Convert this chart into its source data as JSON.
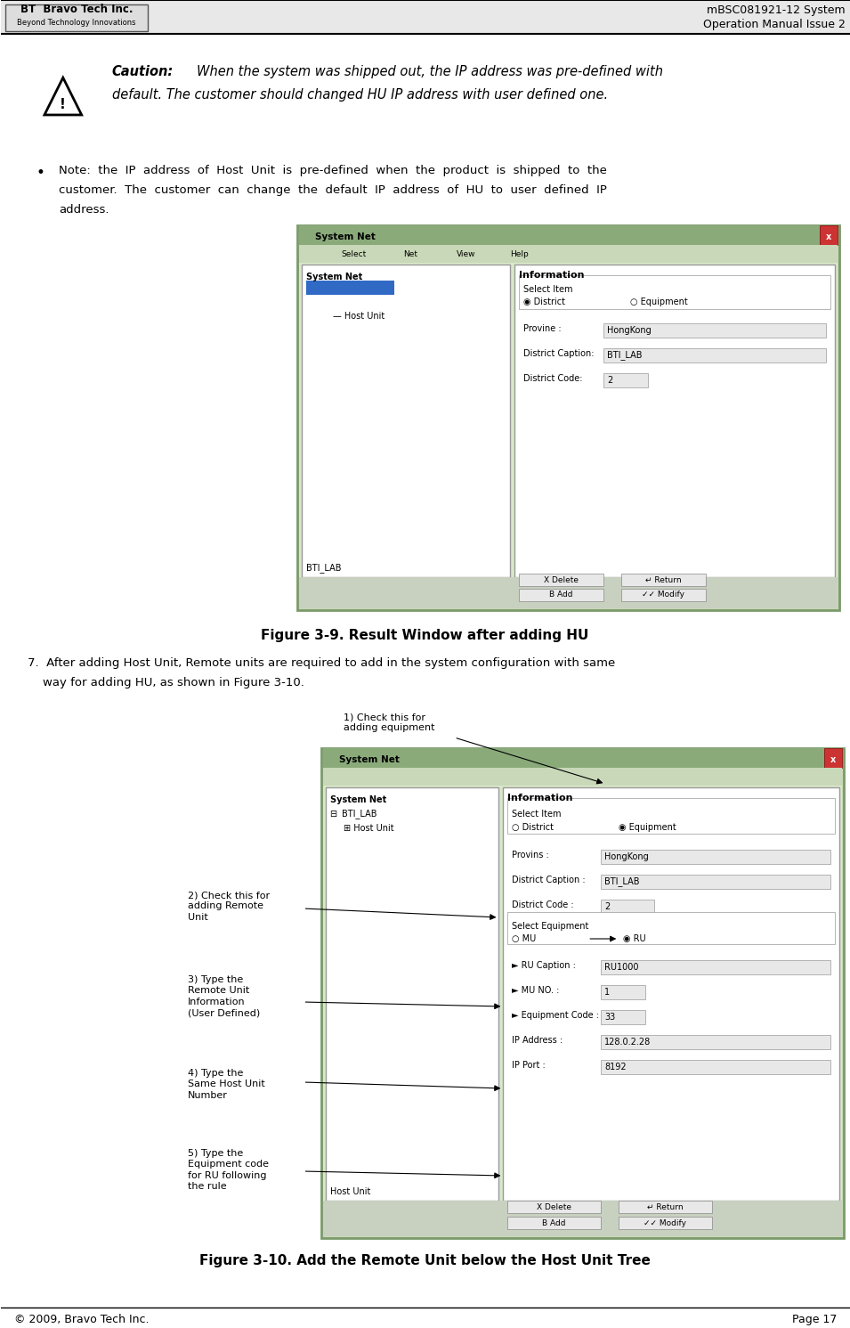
{
  "page_width": 9.55,
  "page_height": 14.91,
  "bg_color": "#ffffff",
  "header": {
    "right_line1": "mBSC081921-12 System",
    "right_line2": "Operation Manual Issue 2"
  },
  "footer": {
    "left_text": "© 2009, Bravo Tech Inc.",
    "right_text": "Page 17"
  },
  "caution_bold": "Caution:",
  "caution_italic": " When the system was shipped out, the IP address was pre-defined with default. The customer should changed HU IP address with user defined one.",
  "bullet_line1": "Note:  the  IP  address  of  Host  Unit  is  pre-defined  when  the  product  is  shipped  to  the",
  "bullet_line2": "customer.  The  customer  can  change  the  default  IP  address  of  HU  to  user  defined  IP",
  "bullet_line3": "address.",
  "fig1_caption": "Figure 3-9. Result Window after adding HU",
  "step7_line1": "7.  After adding Host Unit, Remote units are required to add in the system configuration with same",
  "step7_line2": "    way for adding HU, as shown in Figure 3-10.",
  "fig2_caption": "Figure 3-10. Add the Remote Unit below the Host Unit Tree",
  "ann1_text": "1) Check this for\nadding equipment",
  "ann2_text": "2) Check this for\nadding Remote\nUnit",
  "ann3_text": "3) Type the\nRemote Unit\nInformation\n(User Defined)",
  "ann4_text": "4) Type the\nSame Host Unit\nNumber",
  "ann5_text": "5) Type the\nEquipment code\nfor RU following\nthe rule",
  "titlebar_color": "#6a8faf",
  "selected_color": "#316AC5",
  "panel_bg": "#f0f0f0",
  "field_bg": "#e8e8e8"
}
